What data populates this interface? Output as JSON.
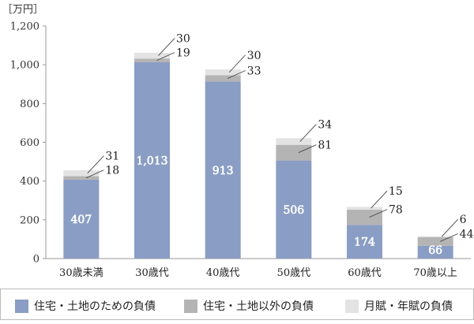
{
  "chart_data": {
    "type": "bar",
    "stacked": true,
    "unit_label": "［万円］",
    "categories": [
      "30歳未満",
      "30歳代",
      "40歳代",
      "50歳代",
      "60歳代",
      "70歳以上"
    ],
    "ylim": [
      0,
      1200
    ],
    "yticks": [
      0,
      200,
      400,
      600,
      800,
      1000,
      1200
    ],
    "ytick_labels": [
      "0",
      "200",
      "400",
      "600",
      "800",
      "1,000",
      "1,200"
    ],
    "grid": false,
    "legend_position": "bottom",
    "series": [
      {
        "name": "住宅・土地のための負債",
        "color": "#8a9dc4",
        "values": [
          407,
          1013,
          913,
          506,
          174,
          66
        ],
        "labels": [
          "407",
          "1,013",
          "913",
          "506",
          "174",
          "66"
        ]
      },
      {
        "name": "住宅・土地以外の負債",
        "color": "#b4b4b4",
        "values": [
          18,
          19,
          33,
          81,
          78,
          44
        ],
        "labels": [
          "18",
          "19",
          "33",
          "81",
          "78",
          "44"
        ]
      },
      {
        "name": "月賦・年賦の負債",
        "color": "#e3e3e3",
        "values": [
          31,
          30,
          30,
          34,
          15,
          6
        ],
        "labels": [
          "31",
          "30",
          "30",
          "34",
          "15",
          "6"
        ]
      }
    ]
  }
}
